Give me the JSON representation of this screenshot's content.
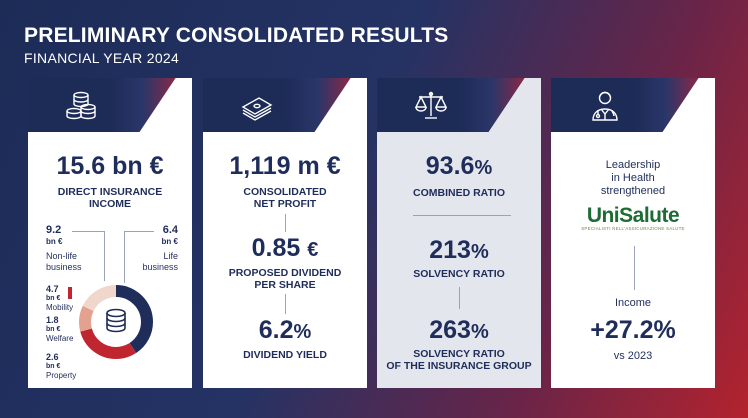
{
  "header": {
    "title": "PRELIMINARY CONSOLIDATED RESULTS",
    "subtitle": "FINANCIAL YEAR 2024"
  },
  "colors": {
    "navy": "#1f2d5a",
    "red": "#c0262f",
    "salmon": "#e4a190",
    "light": "#f1d6cc",
    "green": "#1e6b34"
  },
  "panels": {
    "insurance": {
      "icon": "coins-icon",
      "value": "15.6 bn €",
      "label1": "DIRECT INSURANCE",
      "label2": "INCOME",
      "nonlife_value": "9.2",
      "nonlife_unit": "bn €",
      "nonlife_label1": "Non-life",
      "nonlife_label2": "business",
      "life_value": "6.4",
      "life_unit": "bn €",
      "life_label1": "Life",
      "life_label2": "business",
      "segments": [
        {
          "value": "4.7",
          "unit": "bn €",
          "name": "Mobility"
        },
        {
          "value": "1.8",
          "unit": "bn €",
          "name": "Welfare"
        },
        {
          "value": "2.6",
          "unit": "bn €",
          "name": "Property"
        }
      ],
      "donut_icon": "database-icon"
    },
    "profit": {
      "icon": "banknotes-icon",
      "value": "1,119 m €",
      "label1": "CONSOLIDATED",
      "label2": "NET PROFIT",
      "dividend_num": "0.85",
      "dividend_unit": "€",
      "dividend_label1": "PROPOSED DIVIDEND",
      "dividend_label2": "PER SHARE",
      "yield_num": "6.2",
      "yield_unit": "%",
      "yield_label": "DIVIDEND YIELD"
    },
    "ratios": {
      "icon": "scales-icon",
      "combined_num": "93.6",
      "combined_unit": "%",
      "combined_label": "COMBINED RATIO",
      "solvency_num": "213",
      "solvency_unit": "%",
      "solvency_label": "SOLVENCY RATIO",
      "group_num": "263",
      "group_unit": "%",
      "group_label1": "SOLVENCY RATIO",
      "group_label2": "OF THE INSURANCE GROUP"
    },
    "health": {
      "icon": "doctor-icon",
      "line1": "Leadership",
      "line2": "in Health",
      "line3": "strengthened",
      "brand": "UniSalute",
      "brand_tag": "SPECIALISTI NELL'ASSICURAZIONE SALUTE",
      "income_label": "Income",
      "growth": "+27.2%",
      "compare": "vs 2023"
    }
  }
}
